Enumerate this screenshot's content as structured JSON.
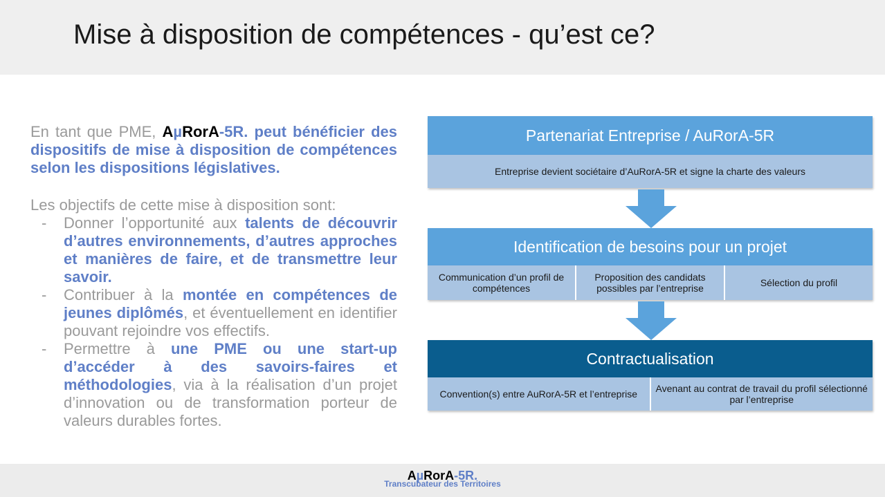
{
  "header": {
    "title": "Mise à disposition de compétences - qu’est ce?"
  },
  "intro": {
    "pre": "En tant que PME, ",
    "brand_a": "A",
    "brand_mu": "µ",
    "brand_rora": "RorA",
    "brand_suffix": "-5R.",
    "rest": " peut bénéficier des dispositifs de mise à disposition de compétences selon les dispositions législatives."
  },
  "objectives": {
    "lead": "Les objectifs de cette mise à disposition sont:",
    "items": [
      {
        "dash": "-",
        "t1": "Donner l’opportunité aux ",
        "b1": "talents de découvrir d’autres environnements, d’autres approches et manières de faire, et de transmettre leur savoir.",
        "t2": ""
      },
      {
        "dash": "-",
        "t1": "Contribuer à la ",
        "b1": "montée en compétences de jeunes diplômés",
        "t2": ", et éventuellement en identifier pouvant rejoindre vos effectifs."
      },
      {
        "dash": "-",
        "t1": "Permettre à ",
        "b1": "une PME ou une start-up d’accéder à des savoirs-faires et méthodologies",
        "t2": ", via à la réalisation d’un projet d’innovation ou de transformation porteur de valeurs durables fortes."
      }
    ]
  },
  "flow": {
    "step1": {
      "title": "Partenariat Entreprise / AuRorA-5R",
      "cells": [
        "Entreprise devient sociétaire d’AuRorA-5R  et signe la charte des valeurs"
      ]
    },
    "step2": {
      "title": "Identification de besoins pour un projet",
      "cells": [
        "Communication d’un profil de compétences",
        "Proposition des candidats possibles par l’entreprise",
        "Sélection du profil"
      ]
    },
    "step3": {
      "title": "Contractualisation",
      "cells": [
        "Convention(s) entre AuRorA-5R  et l’entreprise",
        "Avenant au contrat de travail du profil sélectionné par l’entreprise"
      ]
    },
    "colors": {
      "light_band": "#5ba3dc",
      "dark_band": "#0a5d8e",
      "sub_band": "#a9c4e2",
      "arrow": "#5ba3dc"
    }
  },
  "footer": {
    "logo_a": "A",
    "logo_mu": "µ",
    "logo_rora": "RorA",
    "logo_suffix": "-5R.",
    "tagline": "Transcubateur des Territoires"
  }
}
